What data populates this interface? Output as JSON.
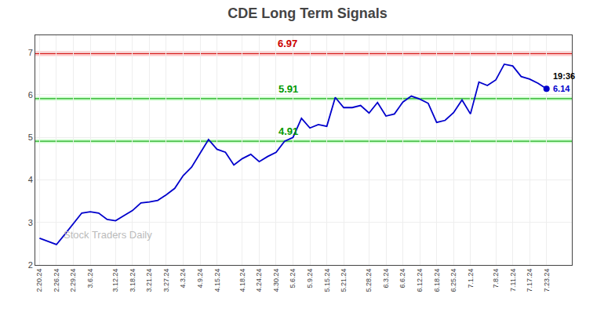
{
  "chart_data": {
    "type": "line",
    "title": "CDE Long Term Signals",
    "categories": [
      "2.20.24",
      null,
      "2.26.24",
      null,
      "2.29.24",
      null,
      "3.6.24",
      null,
      null,
      "3.12.24",
      null,
      "3.18.24",
      null,
      "3.21.24",
      null,
      "3.27.24",
      null,
      "4.3.24",
      null,
      "4.9.24",
      null,
      "4.15.24",
      null,
      null,
      "4.18.24",
      null,
      "4.24.24",
      null,
      "4.30.24",
      null,
      "5.6.24",
      null,
      "5.9.24",
      null,
      "5.15.24",
      null,
      "5.21.24",
      null,
      null,
      "5.28.24",
      null,
      "6.3.24",
      null,
      "6.6.24",
      null,
      "6.12.24",
      null,
      "6.18.24",
      null,
      "6.25.24",
      null,
      "7.1.24",
      null,
      null,
      "7.8.24",
      null,
      "7.11.24",
      null,
      "7.17.24",
      null,
      "7.23.24"
    ],
    "values": [
      2.63,
      2.55,
      2.48,
      2.72,
      2.97,
      3.22,
      3.25,
      3.22,
      3.07,
      3.04,
      3.16,
      3.28,
      3.46,
      3.48,
      3.52,
      3.65,
      3.8,
      4.1,
      4.3,
      4.62,
      4.95,
      4.72,
      4.65,
      4.35,
      4.5,
      4.6,
      4.43,
      4.55,
      4.65,
      4.91,
      5.0,
      5.45,
      5.22,
      5.3,
      5.26,
      5.94,
      5.7,
      5.7,
      5.75,
      5.57,
      5.82,
      5.5,
      5.55,
      5.83,
      5.97,
      5.9,
      5.8,
      5.35,
      5.4,
      5.58,
      5.88,
      5.55,
      6.3,
      6.22,
      6.35,
      6.72,
      6.68,
      6.43,
      6.37,
      6.27,
      6.14
    ],
    "color": "#0000cc",
    "ylim": [
      2.0,
      7.4
    ],
    "yticks": [
      2,
      3,
      4,
      5,
      6,
      7
    ],
    "grid": true,
    "reference_lines": [
      {
        "y": 6.97,
        "label": "6.97",
        "color": "#cc0000",
        "band_color": "#ffcccc"
      },
      {
        "y": 5.91,
        "label": "5.91",
        "color": "#009900",
        "band_color": "#ccffcc"
      },
      {
        "y": 4.91,
        "label": "4.91",
        "color": "#009900",
        "band_color": "#ccffcc"
      }
    ],
    "end_point": {
      "value": 6.14,
      "label": "6.14",
      "time": "19:36"
    },
    "watermark": "Stock Traders Daily"
  }
}
